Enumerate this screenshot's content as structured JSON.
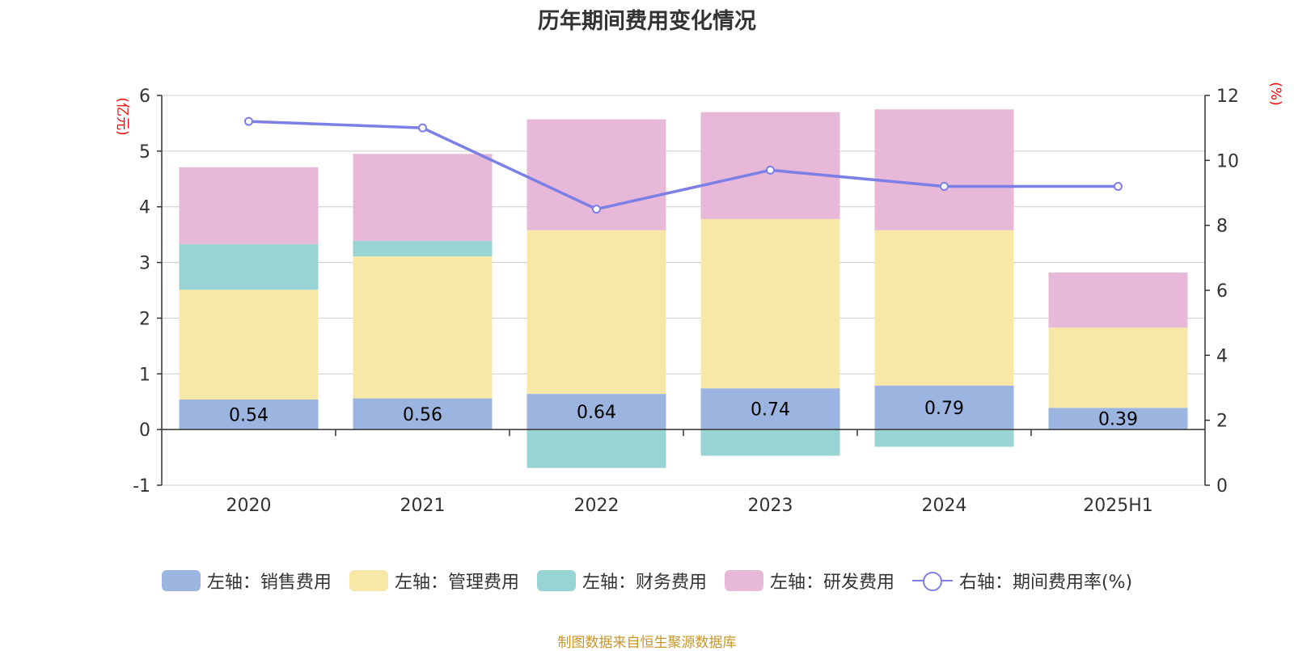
{
  "title": "历年期间费用变化情况",
  "source_note": "制图数据来自恒生聚源数据库",
  "colors": {
    "sales": "#9bb5e0",
    "admin": "#f8e8a8",
    "finance": "#98d4d4",
    "rd": "#e8b8d8",
    "rate_line": "#7b7fe6",
    "axis_unit": "#ff0000"
  },
  "legend": [
    {
      "label": "左轴：销售费用",
      "kind": "bar",
      "color": "#9bb5e0"
    },
    {
      "label": "左轴：管理费用",
      "kind": "bar",
      "color": "#f8e8a8"
    },
    {
      "label": "左轴：财务费用",
      "kind": "bar",
      "color": "#98d4d4"
    },
    {
      "label": "左轴：研发费用",
      "kind": "bar",
      "color": "#e8b8d8"
    },
    {
      "label": "右轴：期间费用率(%)",
      "kind": "line",
      "color": "#7b7fe6"
    }
  ],
  "chart_data": {
    "type": "bar",
    "stacked": true,
    "categories": [
      "2020",
      "2021",
      "2022",
      "2023",
      "2024",
      "2025H1"
    ],
    "left_axis": {
      "unit_label": "(亿元)",
      "ylim": [
        -1,
        6
      ],
      "ticks": [
        -1,
        0,
        1,
        2,
        3,
        4,
        5,
        6
      ]
    },
    "right_axis": {
      "unit_label": "(%)",
      "ylim": [
        0,
        12
      ],
      "ticks": [
        0,
        2,
        4,
        6,
        8,
        10,
        12
      ]
    },
    "grid": true,
    "legend_position": "bottom",
    "series": [
      {
        "name": "左轴：销售费用",
        "axis": "left",
        "type": "bar",
        "color": "#9bb5e0",
        "values": [
          0.54,
          0.56,
          0.64,
          0.74,
          0.79,
          0.39
        ],
        "show_labels": true
      },
      {
        "name": "左轴：管理费用",
        "axis": "left",
        "type": "bar",
        "color": "#f8e8a8",
        "values": [
          1.97,
          2.55,
          2.94,
          3.04,
          2.79,
          1.44
        ]
      },
      {
        "name": "左轴：财务费用",
        "axis": "left",
        "type": "bar",
        "color": "#98d4d4",
        "values": [
          0.82,
          0.28,
          -0.69,
          -0.47,
          -0.31,
          0.0
        ]
      },
      {
        "name": "左轴：研发费用",
        "axis": "left",
        "type": "bar",
        "color": "#e8b8d8",
        "values": [
          1.38,
          1.56,
          1.99,
          1.92,
          2.17,
          0.99
        ]
      },
      {
        "name": "右轴：期间费用率(%)",
        "axis": "right",
        "type": "line",
        "color": "#7b7fe6",
        "values": [
          11.2,
          11.0,
          8.5,
          9.7,
          9.2,
          9.2
        ]
      }
    ]
  }
}
